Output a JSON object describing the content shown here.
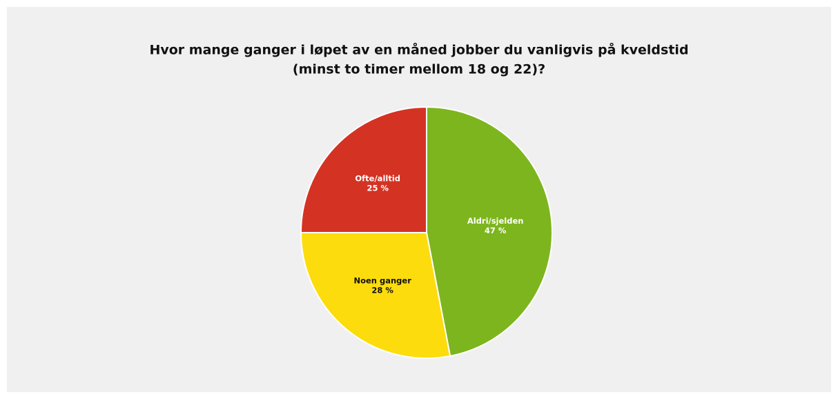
{
  "chart_data": {
    "type": "pie",
    "title": [
      "Hvor mange ganger i løpet av en måned jobber du vanligvis på kveldstid",
      "(minst to timer mellom 18 og 22)?"
    ],
    "categories": [
      "Aldri/sjelden",
      "Noen ganger",
      "Ofte/alltid"
    ],
    "values": [
      47,
      28,
      25
    ],
    "value_labels": [
      "47 %",
      "28 %",
      "25 %"
    ],
    "colors": [
      "#7db51e",
      "#fcdc0c",
      "#d43324"
    ],
    "label_colors": [
      "#ffffff",
      "#111111",
      "#ffffff"
    ]
  }
}
